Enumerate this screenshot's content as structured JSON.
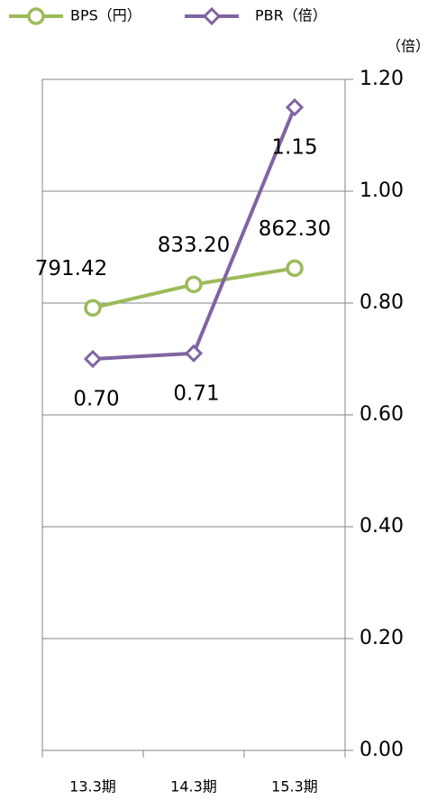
{
  "chart_data": {
    "type": "line",
    "categories": [
      "13.3期",
      "14.3期",
      "15.3期"
    ],
    "series": [
      {
        "name": "BPS（円）",
        "color": "#9bbb59",
        "marker": "circle",
        "axis": "y",
        "values": [
          791.42,
          833.2,
          862.3
        ],
        "value_labels": [
          "791.42",
          "833.20",
          "862.30"
        ]
      },
      {
        "name": "PBR（倍）",
        "color": "#8064a2",
        "marker": "diamond",
        "axis": "y2",
        "values": [
          0.7,
          0.71,
          1.15
        ],
        "value_labels": [
          "0.70",
          "0.71",
          "1.15"
        ]
      }
    ],
    "ylim": [
      0,
      1200
    ],
    "y2lim": [
      0,
      1.2
    ],
    "y2label": "（倍）",
    "y2ticks": [
      {
        "value": 0,
        "label": "0.00"
      },
      {
        "value": 0.2,
        "label": "0.20"
      },
      {
        "value": 0.4,
        "label": "0.40"
      },
      {
        "value": 0.6,
        "label": "0.60"
      },
      {
        "value": 0.8,
        "label": "0.80"
      },
      {
        "value": 1.0,
        "label": "1.00"
      },
      {
        "value": 1.2,
        "label": "1.20"
      }
    ],
    "grid": true,
    "legend": "top"
  }
}
